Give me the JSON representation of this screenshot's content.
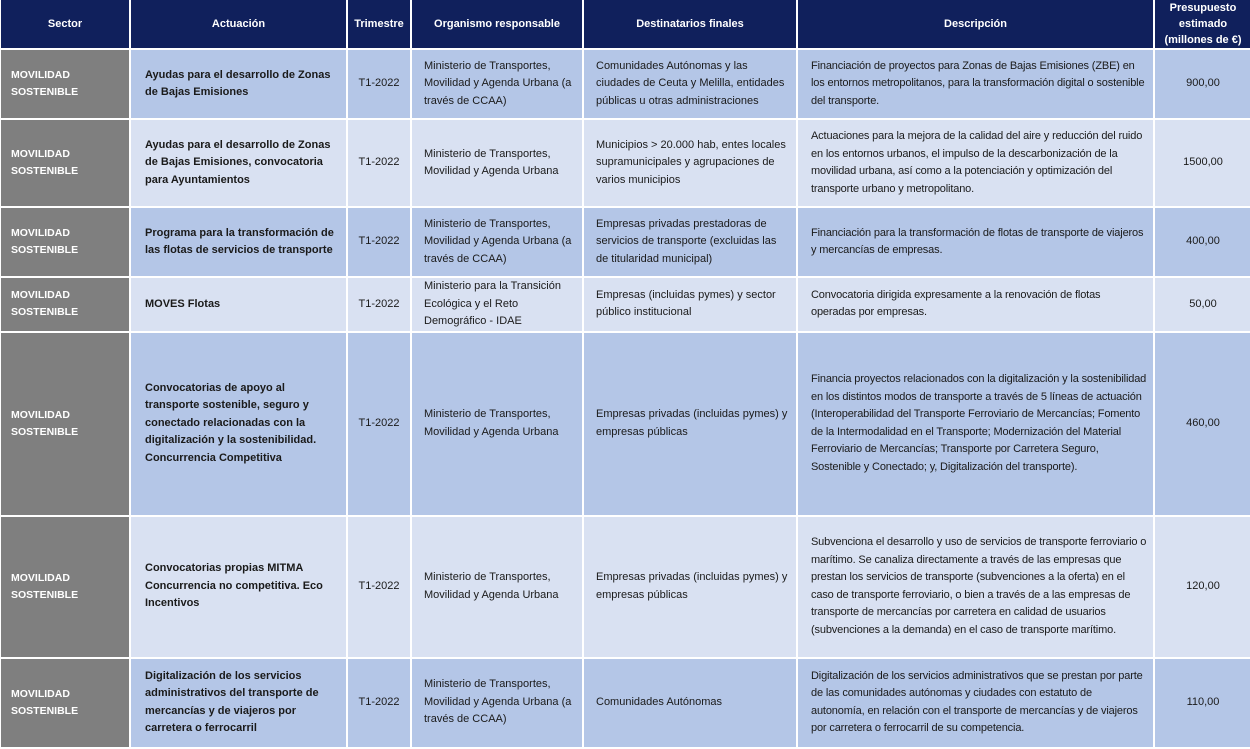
{
  "colors": {
    "header": "#10205c",
    "row_dark": "#b4c6e7",
    "row_light": "#d9e1f2",
    "sector": "#7f7f7f"
  },
  "headers": [
    "Sector",
    "Actuación",
    "Trimestre",
    "Organismo responsable",
    "Destinatarios finales",
    "Descripción",
    "Presupuesto estimado (millones de €)"
  ],
  "rows": [
    {
      "sector": "MOVILIDAD SOSTENIBLE",
      "actuacion": "Ayudas para el desarrollo de Zonas de Bajas Emisiones",
      "trimestre": "T1-2022",
      "organismo": "Ministerio de Transportes, Movilidad y Agenda Urbana (a través de CCAA)",
      "destinatarios": "Comunidades Autónomas y las ciudades de Ceuta y Melilla, entidades públicas u otras administraciones",
      "descripcion": "Financiación de proyectos para Zonas de Bajas Emisiones (ZBE) en los entornos metropolitanos, para la transformación digital o sostenible del transporte.",
      "presupuesto": "900,00"
    },
    {
      "sector": "MOVILIDAD SOSTENIBLE",
      "actuacion": "Ayudas para el desarrollo de Zonas de Bajas Emisiones, convocatoria para Ayuntamientos",
      "trimestre": "T1-2022",
      "organismo": "Ministerio de Transportes, Movilidad y Agenda Urbana",
      "destinatarios": "Municipios > 20.000 hab, entes locales supramunicipales y agrupaciones de varios municipios",
      "descripcion": "Actuaciones para la mejora de la calidad del aire y reducción del ruido en los entornos urbanos, el impulso de la descarbonización de la movilidad urbana, así como a la potenciación y optimización del transporte urbano y metropolitano.",
      "presupuesto": "1500,00"
    },
    {
      "sector": "MOVILIDAD SOSTENIBLE",
      "actuacion": "Programa para la transformación de las flotas de servicios de transporte",
      "trimestre": "T1-2022",
      "organismo": "Ministerio de Transportes, Movilidad y Agenda Urbana (a través de CCAA)",
      "destinatarios": "Empresas privadas prestadoras de servicios de transporte (excluidas las de titularidad municipal)",
      "descripcion": "Financiación para la transformación de flotas de transporte de viajeros y mercancías de empresas.",
      "presupuesto": "400,00"
    },
    {
      "sector": "MOVILIDAD SOSTENIBLE",
      "actuacion": "MOVES Flotas",
      "trimestre": "T1-2022",
      "organismo": "Ministerio para la Transición Ecológica y el Reto Demográfico - IDAE",
      "destinatarios": "Empresas (incluidas pymes) y sector público institucional",
      "descripcion": "Convocatoria dirigida expresamente a la renovación de flotas operadas por empresas.",
      "presupuesto": "50,00"
    },
    {
      "sector": "MOVILIDAD SOSTENIBLE",
      "actuacion": "Convocatorias de apoyo al transporte sostenible, seguro y conectado relacionadas con la digitalización y la sostenibilidad. Concurrencia Competitiva",
      "trimestre": "T1-2022",
      "organismo": "Ministerio de Transportes, Movilidad y Agenda Urbana",
      "destinatarios": "Empresas privadas (incluidas pymes) y empresas públicas",
      "descripcion": "Financia proyectos relacionados con la digitalización y la sostenibilidad en los distintos modos de transporte a través de 5 líneas de actuación (Interoperabilidad del Transporte Ferroviario de Mercancías; Fomento de la Intermodalidad en el Transporte; Modernización del Material Ferroviario de Mercancías; Transporte por Carretera Seguro, Sostenible y Conectado; y, Digitalización del transporte).",
      "presupuesto": "460,00"
    },
    {
      "sector": "MOVILIDAD SOSTENIBLE",
      "actuacion": "Convocatorias propias MITMA Concurrencia no competitiva. Eco Incentivos",
      "trimestre": "T1-2022",
      "organismo": "Ministerio de Transportes, Movilidad y Agenda Urbana",
      "destinatarios": "Empresas privadas (incluidas pymes) y empresas públicas",
      "descripcion": "Subvenciona el desarrollo y uso de servicios de transporte ferroviario o marítimo. Se canaliza directamente a través de las empresas que prestan los servicios de transporte (subvenciones a la oferta) en el caso de transporte ferroviario, o bien a través de a las empresas de transporte de mercancías por carretera en calidad de usuarios (subvenciones a la demanda) en el caso de transporte marítimo.",
      "presupuesto": "120,00"
    },
    {
      "sector": "MOVILIDAD SOSTENIBLE",
      "actuacion": "Digitalización de los servicios administrativos del transporte de mercancías y de viajeros por carretera o ferrocarril",
      "trimestre": "T1-2022",
      "organismo": "Ministerio de Transportes, Movilidad y Agenda Urbana (a través de CCAA)",
      "destinatarios": "Comunidades Autónomas",
      "descripcion": "Digitalización de los servicios administrativos que se prestan por parte de las comunidades autónomas y ciudades con estatuto de autonomía, en relación con el transporte de mercancías y de viajeros por carretera o ferrocarril de su competencia.",
      "presupuesto": "110,00"
    }
  ]
}
